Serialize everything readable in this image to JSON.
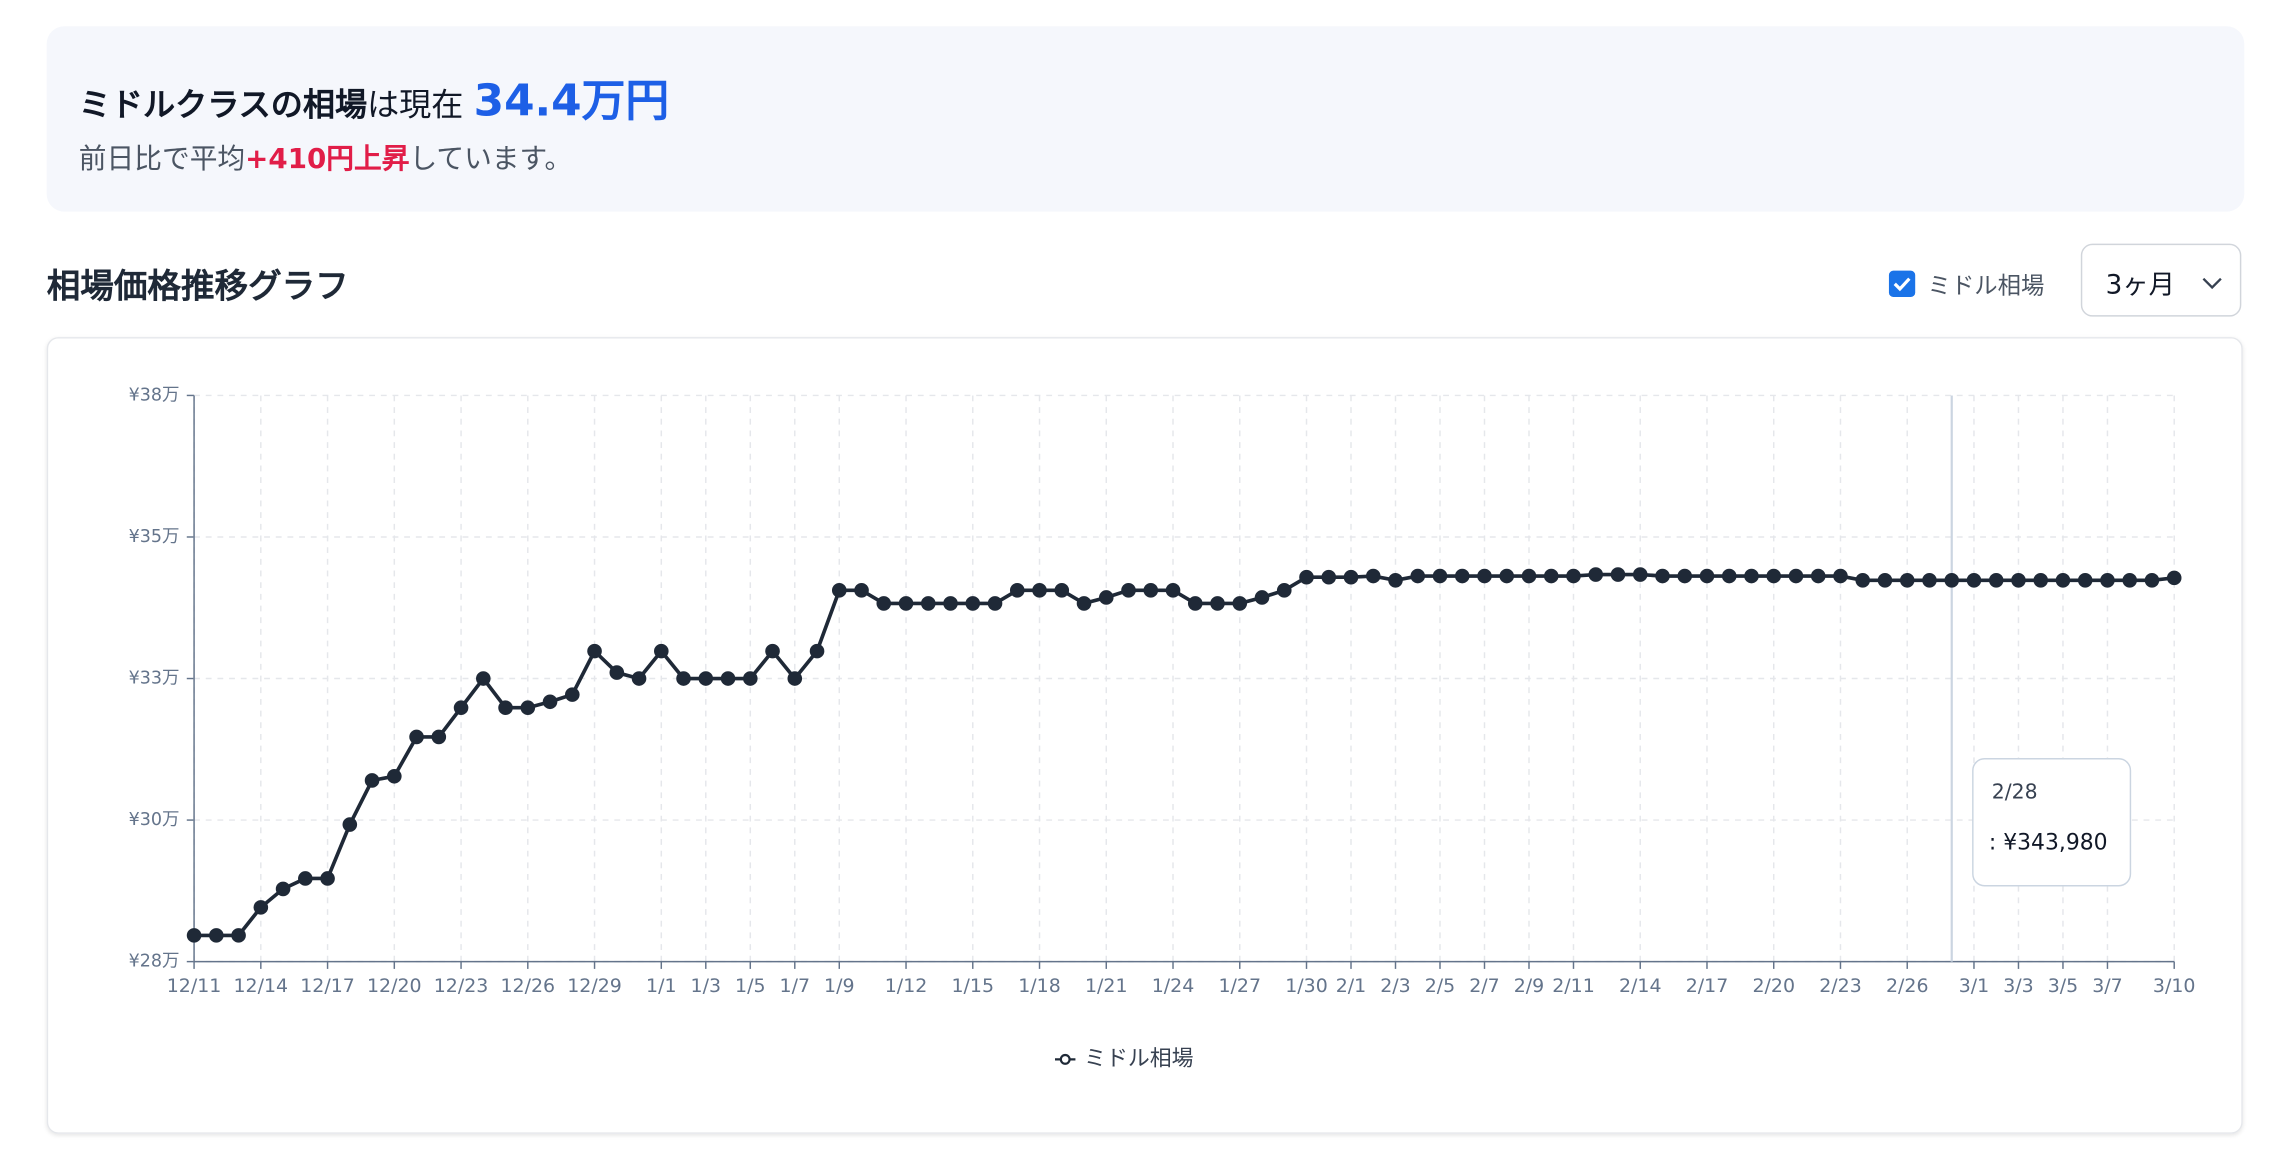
{
  "summary": {
    "label": "ミドルクラスの相場",
    "text": "は現在",
    "price": "34.4万円",
    "line2_prefix": "前日比で平均",
    "change": "+410円上昇",
    "line2_suffix": "しています。"
  },
  "section_title": "相場価格推移グラフ",
  "controls": {
    "checkbox_label": "ミドル相場",
    "period": "3ヶ月"
  },
  "chart_data": {
    "type": "line",
    "categories": [
      "12/11",
      null,
      null,
      "12/14",
      null,
      null,
      "12/17",
      null,
      null,
      "12/20",
      null,
      null,
      "12/23",
      null,
      null,
      "12/26",
      null,
      null,
      "12/29",
      null,
      null,
      "1/1",
      null,
      "1/3",
      null,
      "1/5",
      null,
      "1/7",
      null,
      "1/9",
      null,
      null,
      "1/12",
      null,
      null,
      "1/15",
      null,
      null,
      "1/18",
      null,
      null,
      "1/21",
      null,
      null,
      "1/24",
      null,
      null,
      "1/27",
      null,
      null,
      "1/30",
      null,
      "2/1",
      null,
      "2/3",
      null,
      "2/5",
      null,
      "2/7",
      null,
      "2/9",
      null,
      "2/11",
      null,
      null,
      "2/14",
      null,
      null,
      "2/17",
      null,
      null,
      "2/20",
      null,
      null,
      "2/23",
      null,
      null,
      "2/26",
      null,
      null,
      "3/1",
      null,
      "3/3",
      null,
      "3/5",
      null,
      "3/7",
      null,
      null,
      "3/10"
    ],
    "series": [
      {
        "name": "ミドル相場",
        "color": "#1f2937",
        "values": [
          284400,
          284400,
          284400,
          289100,
          292200,
          293950,
          293950,
          303000,
          310400,
          311100,
          317700,
          317700,
          322600,
          327500,
          322600,
          322600,
          323600,
          324800,
          332100,
          328500,
          327500,
          332100,
          327500,
          327500,
          327500,
          327500,
          332100,
          327500,
          332100,
          342300,
          342300,
          340100,
          340100,
          340100,
          340100,
          340100,
          340100,
          342300,
          342300,
          342300,
          340100,
          341100,
          342300,
          342300,
          342300,
          340100,
          340100,
          340100,
          341100,
          342300,
          344500,
          344500,
          344500,
          344700,
          343980,
          344700,
          344700,
          344700,
          344700,
          344700,
          344700,
          344700,
          344700,
          344950,
          344950,
          344950,
          344700,
          344700,
          344700,
          344700,
          344700,
          344700,
          344700,
          344700,
          344700,
          343980,
          343980,
          343980,
          343980,
          343980,
          343980,
          343980,
          343980,
          343980,
          343980,
          343980,
          343980,
          343980,
          343980,
          344390
        ]
      }
    ],
    "ylim": [
      280000,
      375000
    ],
    "yticks": [
      {
        "value": 280000,
        "label": "¥28万"
      },
      {
        "value": 303750,
        "label": "¥30万"
      },
      {
        "value": 327500,
        "label": "¥33万"
      },
      {
        "value": 351250,
        "label": "¥35万"
      },
      {
        "value": 375000,
        "label": "¥38万"
      }
    ],
    "grid": true,
    "tooltip": {
      "category": "2/28",
      "label": ": ¥343,980"
    }
  }
}
